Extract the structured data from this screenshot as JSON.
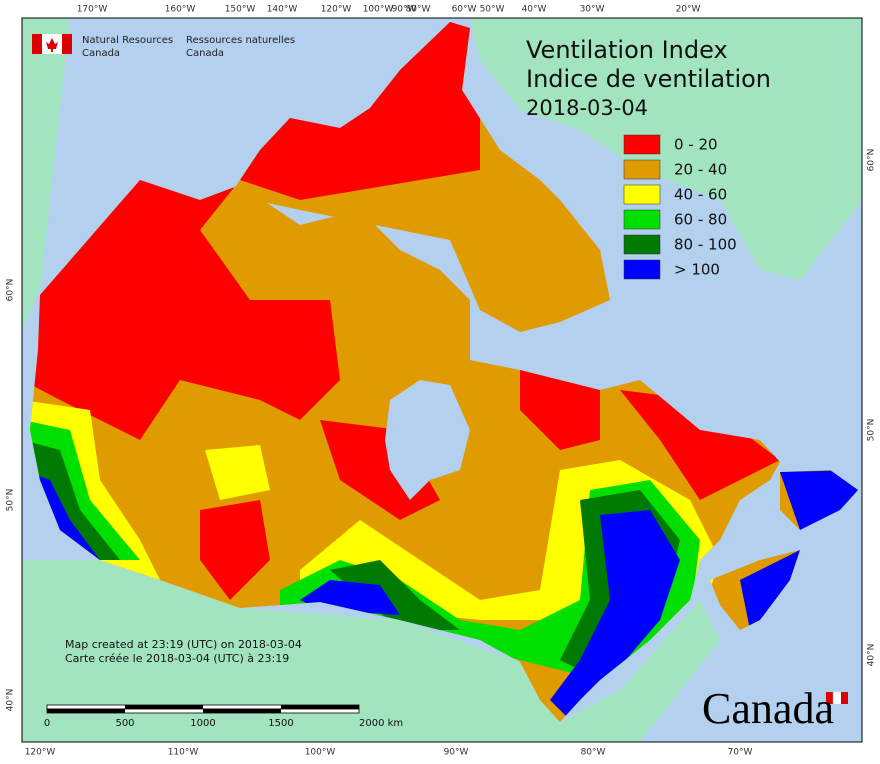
{
  "header": {
    "org_en": [
      "Natural Resources",
      "Canada"
    ],
    "org_fr": [
      "Ressources naturelles",
      "Canada"
    ]
  },
  "title": [
    "Ventilation Index",
    "Indice de ventilation",
    "2018-03-04"
  ],
  "legend": [
    {
      "label": "0 - 20",
      "color": "#ff0000"
    },
    {
      "label": "20 - 40",
      "color": "#e09b00"
    },
    {
      "label": "40 - 60",
      "color": "#ffff00"
    },
    {
      "label": "60 - 80",
      "color": "#00e000"
    },
    {
      "label": "80 - 100",
      "color": "#007a00"
    },
    {
      "label": "> 100",
      "color": "#0000ff"
    }
  ],
  "graticule": {
    "top": [
      "170°W",
      "160°W",
      "150°W",
      "140°W",
      "120°W",
      "100°W",
      "90°W",
      "80°W",
      "60°W",
      "50°W",
      "40°W",
      "30°W",
      "20°W"
    ],
    "bottom": [
      "120°W",
      "110°W",
      "100°W",
      "90°W",
      "80°W",
      "70°W"
    ],
    "left": [
      "60°N",
      "50°N",
      "40°N"
    ],
    "right": [
      "60°N",
      "50°N",
      "40°N"
    ]
  },
  "notes": [
    "Map created at 23:19 (UTC) on 2018-03-04",
    "Carte créée le 2018-03-04 (UTC) à 23:19"
  ],
  "scale_bar": [
    "0",
    "500",
    "1000",
    "1500",
    "2000 km"
  ],
  "wordmark": "Canada"
}
